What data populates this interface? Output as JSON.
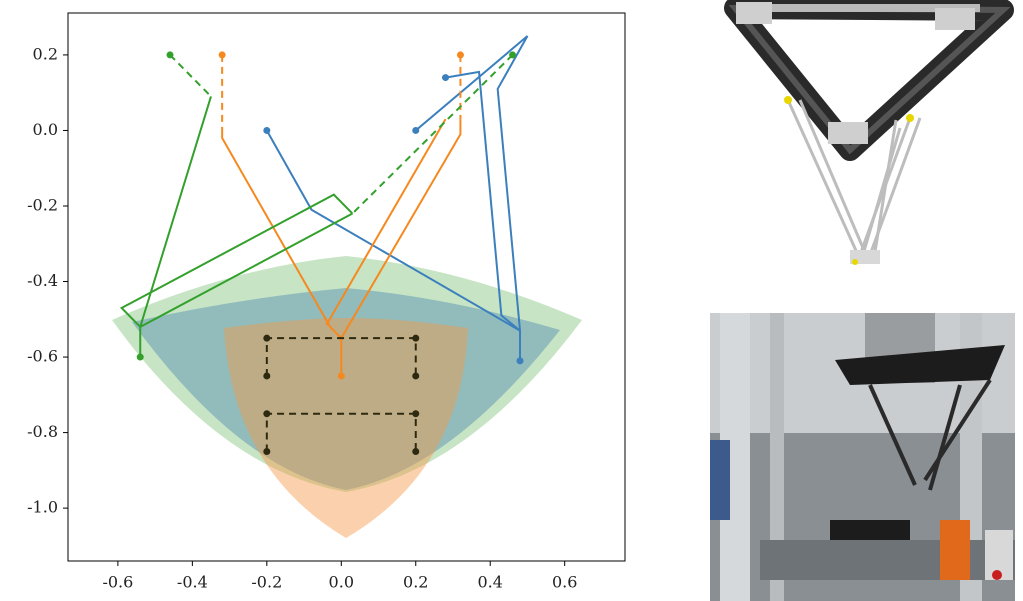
{
  "chart_data": {
    "type": "line",
    "xlim": [
      -0.734,
      0.762
    ],
    "ylim": [
      -1.14,
      0.311
    ],
    "xticks": [
      -0.6,
      -0.4,
      -0.2,
      {
        "value": 0,
        "label": "0.0"
      },
      0.2,
      0.4,
      0.6
    ],
    "yticks": [
      0.2,
      {
        "value": 0,
        "label": "0.0"
      },
      -0.2,
      -0.4,
      -0.6,
      -0.8,
      {
        "value": -1,
        "label": "-1.0"
      }
    ],
    "series": [
      {
        "color": "#3b7fbd",
        "style": "solid",
        "markers": "ends",
        "x": [
          -0.2,
          -0.08,
          0.48,
          0.48
        ],
        "values": [
          0,
          -0.21,
          -0.53,
          -0.61
        ]
      },
      {
        "color": "#3b7fbd",
        "style": "solid",
        "markers": "start",
        "x": [
          0.2,
          0.5,
          0.42,
          0.48
        ],
        "values": [
          0,
          0.25,
          0.11,
          -0.53
        ]
      },
      {
        "color": "#3b7fbd",
        "style": "solid",
        "markers": "start",
        "x": [
          0.28,
          0.37,
          0.43,
          0.48
        ],
        "values": [
          0.14,
          0.155,
          -0.49,
          -0.53
        ]
      },
      {
        "color": "#f5891f",
        "style": "dashed",
        "markers": "start",
        "x": [
          -0.32,
          -0.32
        ],
        "values": [
          0.2,
          0
        ]
      },
      {
        "color": "#f5891f",
        "style": "solid",
        "markers": "end",
        "x": [
          -0.32,
          -0.32,
          -0.03,
          0,
          0
        ],
        "values": [
          0,
          -0.02,
          -0.52,
          -0.55,
          -0.65
        ]
      },
      {
        "color": "#f5891f",
        "style": "dashed",
        "markers": "start",
        "x": [
          0.32,
          0.32
        ],
        "values": [
          0.2,
          0.03
        ]
      },
      {
        "color": "#f5891f",
        "style": "solid",
        "x": [
          0.32,
          0.32,
          0
        ],
        "values": [
          0.03,
          -0.01,
          -0.55
        ]
      },
      {
        "color": "#f5891f",
        "style": "solid",
        "x": [
          0.28,
          -0.04
        ],
        "values": [
          0.03,
          -0.515
        ]
      },
      {
        "color": "#33a02c",
        "style": "dashed",
        "markers": "start",
        "x": [
          -0.46,
          -0.35
        ],
        "values": [
          0.2,
          0.09
        ]
      },
      {
        "color": "#33a02c",
        "style": "solid",
        "markers": "end",
        "x": [
          -0.35,
          -0.54,
          -0.54
        ],
        "values": [
          0.09,
          -0.52,
          -0.6
        ]
      },
      {
        "color": "#33a02c",
        "style": "dashed",
        "markers": "start",
        "x": [
          0.46,
          0.03
        ],
        "values": [
          0.2,
          -0.22
        ]
      },
      {
        "color": "#33a02c",
        "style": "solid",
        "x": [
          0.03,
          -0.02,
          -0.59,
          -0.54,
          0.03
        ],
        "values": [
          -0.22,
          -0.17,
          -0.47,
          -0.52,
          -0.22
        ]
      },
      {
        "color": "#2e2a10",
        "style": "dashed",
        "markers": "all",
        "x": [
          -0.2,
          -0.2,
          0.2,
          0.2
        ],
        "values": [
          -0.65,
          -0.55,
          -0.55,
          -0.65
        ]
      },
      {
        "color": "#2e2a10",
        "style": "dashed",
        "markers": "all",
        "x": [
          -0.2,
          -0.2,
          0.2,
          0.2
        ],
        "values": [
          -0.85,
          -0.75,
          -0.75,
          -0.85
        ]
      }
    ]
  }
}
